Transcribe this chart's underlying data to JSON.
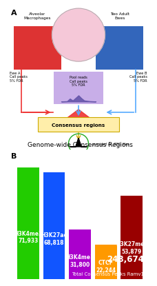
{
  "panel_b_title": "Genome-wide Consensus Regions",
  "bars": [
    {
      "label": "H3K4me3\n71,933",
      "value": 71933,
      "color": "#22cc00"
    },
    {
      "label": "H3K27ac\n68,818",
      "value": 68818,
      "color": "#1155ff"
    },
    {
      "label": "H3K4me1\n31,800",
      "value": 31800,
      "color": "#aa00cc"
    },
    {
      "label": "CTCF\n22,244",
      "value": 22244,
      "color": "#ff9900"
    },
    {
      "label": "H3K27me3\n53,879",
      "value": 53879,
      "color": "#990000"
    }
  ],
  "total_value": "248,674",
  "total_label": "Total Consensus Peaks Ramv1",
  "bar_bg_color": "#000000",
  "ylim_max": 80000,
  "bar_width": 0.85,
  "title_fontsize": 6.5,
  "label_fontsize": 5.5,
  "total_fontsize": 8.5,
  "total_sub_fontsize": 5.0
}
